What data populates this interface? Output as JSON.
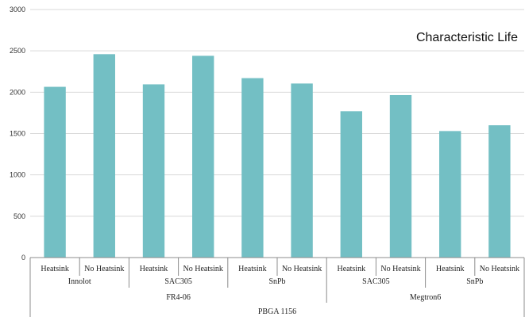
{
  "chart_data": {
    "type": "bar",
    "title": "Characteristic Life",
    "xlabel": "",
    "ylabel": "",
    "ylim": [
      0,
      3000
    ],
    "yticks": [
      0,
      500,
      1000,
      1500,
      2000,
      2500,
      3000
    ],
    "grid": true,
    "legend": "none",
    "bar_color": "#73bfc4",
    "categories": [
      "Heatsink",
      "No Heatsink",
      "Heatsink",
      "No Heatsink",
      "Heatsink",
      "No Heatsink",
      "Heatsink",
      "No Heatsink",
      "Heatsink",
      "No Heatsink"
    ],
    "values": [
      2065,
      2460,
      2095,
      2440,
      2170,
      2105,
      1770,
      1965,
      1530,
      1600
    ],
    "group_level_1": [
      {
        "label": "Innolot",
        "span": 2
      },
      {
        "label": "SAC305",
        "span": 2
      },
      {
        "label": "SnPb",
        "span": 2
      },
      {
        "label": "SAC305",
        "span": 2
      },
      {
        "label": "SnPb",
        "span": 2
      }
    ],
    "group_level_2": [
      {
        "label": "FR4-06",
        "span": 6
      },
      {
        "label": "Megtron6",
        "span": 4
      }
    ],
    "group_level_3": [
      {
        "label": "PBGA 1156",
        "span": 10
      }
    ]
  }
}
